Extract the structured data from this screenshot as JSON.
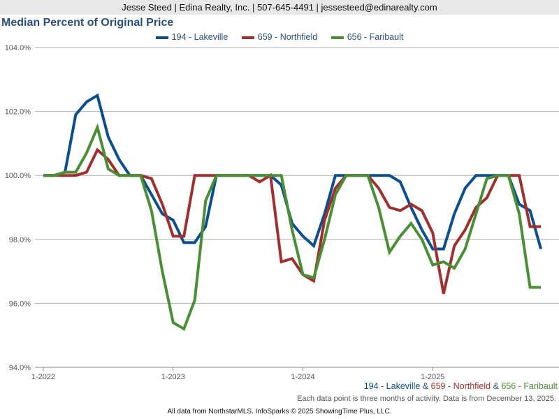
{
  "header": "Jesse Steed | Edina Realty, Inc. | 507-645-4491 | jessesteed@edinarealty.com",
  "chart_data": {
    "type": "line",
    "title": "Median Percent of Original Price",
    "xlabel": "",
    "ylabel": "",
    "ylim": [
      94,
      104
    ],
    "yticks": [
      "94.0%",
      "96.0%",
      "98.0%",
      "100.0%",
      "102.0%",
      "104.0%"
    ],
    "xticks": [
      "1-2022",
      "1-2023",
      "1-2024",
      "1-2025"
    ],
    "x_start": "1-2022",
    "x_step": "month",
    "legend_position": "top-center",
    "series": [
      {
        "name": "194 - Lakeville",
        "color": "#0b4f8e",
        "values": [
          100,
          100,
          100.1,
          101.9,
          102.3,
          102.5,
          101.2,
          100.5,
          100,
          100,
          99.4,
          98.8,
          98.6,
          97.9,
          97.9,
          98.4,
          100,
          100,
          100,
          100,
          100,
          100,
          99.7,
          98.5,
          98.1,
          97.8,
          98.8,
          100,
          100,
          100,
          100,
          100,
          100,
          99.8,
          99.0,
          98.3,
          97.7,
          97.7,
          98.8,
          99.6,
          100,
          100,
          100,
          100,
          99.1,
          98.9,
          97.7
        ]
      },
      {
        "name": "659 - Northfield",
        "color": "#a0302f",
        "values": [
          100,
          100,
          100,
          100,
          100.1,
          100.8,
          100.5,
          100,
          100,
          100,
          99.9,
          99.1,
          98.1,
          98.1,
          100,
          100,
          100,
          100,
          100,
          100,
          99.8,
          100,
          97.3,
          97.4,
          96.9,
          96.7,
          98.6,
          99.6,
          100,
          100,
          100,
          99.6,
          99.0,
          98.9,
          99.1,
          98.9,
          98.2,
          96.3,
          97.8,
          98.3,
          99.0,
          99.3,
          100,
          100,
          100,
          98.4,
          98.4
        ]
      },
      {
        "name": "656 - Faribault",
        "color": "#4a8e36",
        "values": [
          100,
          100,
          100.1,
          100.1,
          100.7,
          101.5,
          100.2,
          100,
          100,
          100,
          98.9,
          97.0,
          95.4,
          95.2,
          96.1,
          99.2,
          100,
          100,
          100,
          100,
          100,
          100,
          100,
          98.3,
          96.9,
          96.8,
          98.0,
          99.4,
          100,
          100,
          100,
          99.0,
          97.6,
          98.1,
          98.5,
          98.0,
          97.2,
          97.3,
          97.1,
          97.7,
          98.8,
          99.9,
          100,
          100,
          98.8,
          96.5,
          96.5
        ]
      }
    ]
  },
  "bottom_legend": {
    "a": "194 - Lakeville",
    "sep1": " & ",
    "b": "659 - Northfield",
    "sep2": " & ",
    "c": "656 - Faribault"
  },
  "note": "Each data point is three months of activity. Data is from December 13, 2025.",
  "footer": "All data from NorthstarMLS. InfoSparks © 2025 ShowingTime Plus, LLC."
}
